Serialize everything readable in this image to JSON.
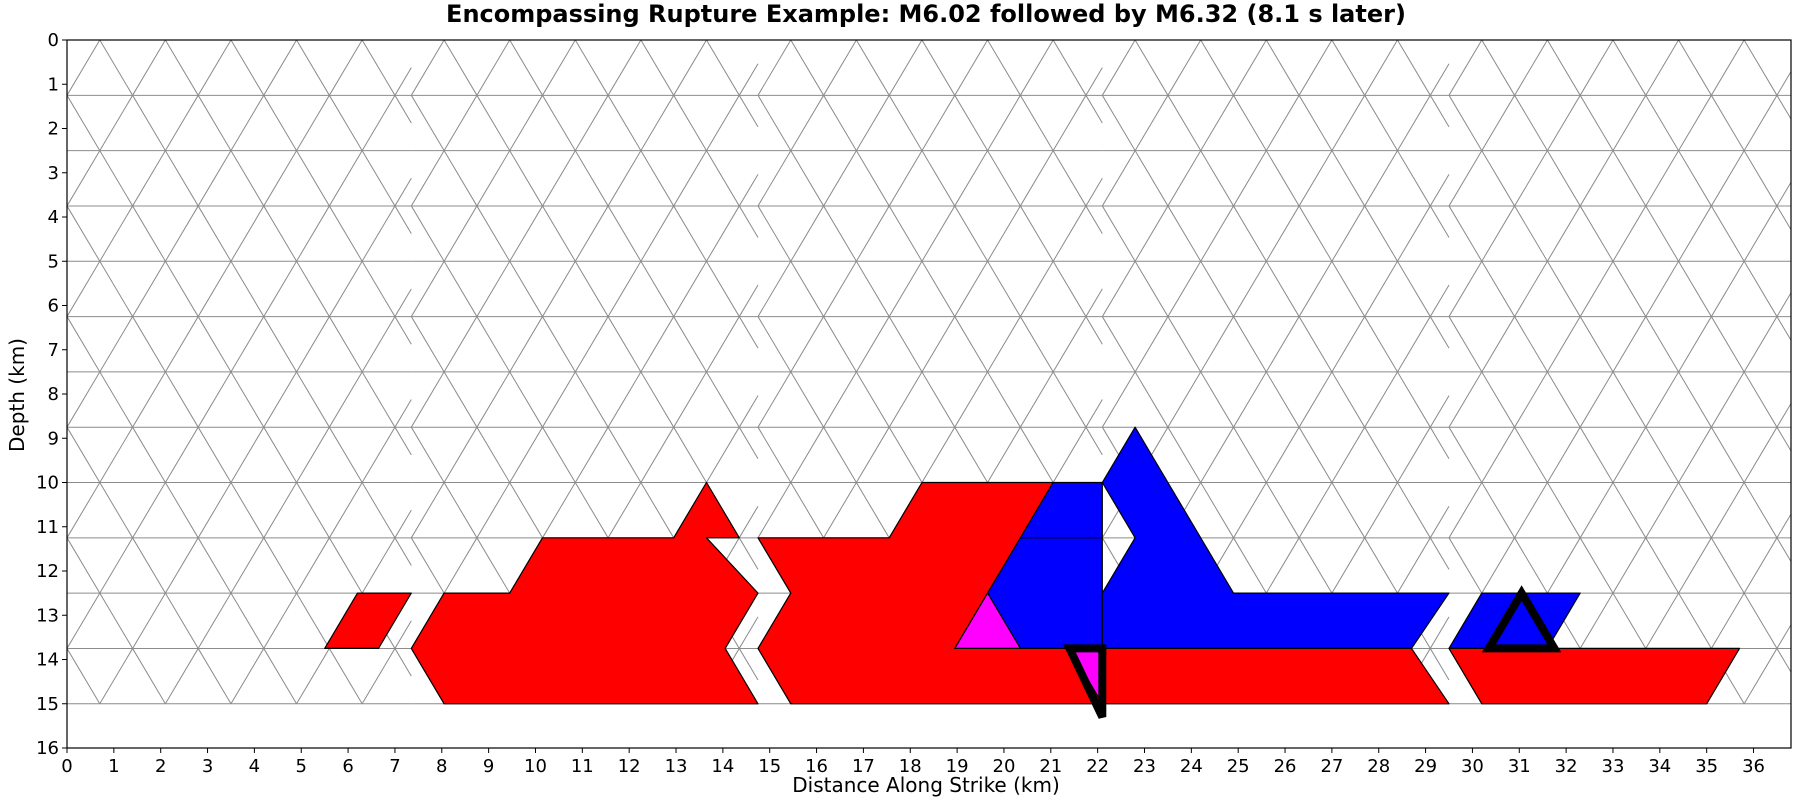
{
  "chart_data": {
    "type": "triangular-fault-mesh",
    "title": "Encompassing Rupture Example: M6.02 followed by M6.32 (8.1 s later)",
    "xlabel": "Distance Along Strike (km)",
    "ylabel": "Depth (km)",
    "xlim": [
      0,
      36.8
    ],
    "ylim": [
      16,
      0
    ],
    "x_ticks": [
      "0",
      "1",
      "2",
      "3",
      "4",
      "5",
      "6",
      "7",
      "8",
      "9",
      "10",
      "11",
      "12",
      "13",
      "14",
      "15",
      "16",
      "17",
      "18",
      "19",
      "20",
      "21",
      "22",
      "23",
      "24",
      "25",
      "26",
      "27",
      "28",
      "29",
      "30",
      "31",
      "32",
      "33",
      "34",
      "35",
      "36"
    ],
    "y_ticks": [
      "0",
      "1",
      "2",
      "3",
      "4",
      "5",
      "6",
      "7",
      "8",
      "9",
      "10",
      "11",
      "12",
      "13",
      "14",
      "15",
      "16"
    ],
    "colors": {
      "background": "#ffffff",
      "mesh_line": "#8c8c8c",
      "rupture_first": "#ff0000",
      "rupture_second": "#0000ff",
      "overlap": "#ff00ff",
      "hypocenter": "#000000"
    },
    "mesh": {
      "row_depths_km": [
        0,
        1.25,
        2.5,
        3.75,
        5.0,
        6.25,
        7.5,
        8.75,
        10.0,
        11.25,
        12.5,
        13.75,
        15.0
      ],
      "triangle_width_km": 1.4,
      "segments": [
        {
          "x_start_km": 0.0,
          "x_end_km": 7.35
        },
        {
          "x_start_km": 7.35,
          "x_end_km": 14.75
        },
        {
          "x_start_km": 14.75,
          "x_end_km": 22.1
        },
        {
          "x_start_km": 22.1,
          "x_end_km": 29.5
        },
        {
          "x_start_km": 29.5,
          "x_end_km": 36.8
        }
      ]
    },
    "series": [
      {
        "color_key": "rupture_first",
        "polygons": [
          [
            [
              5.5,
              13.75
            ],
            [
              6.2,
              12.5
            ],
            [
              7.35,
              12.5
            ],
            [
              6.65,
              13.75
            ]
          ],
          [
            [
              7.35,
              13.75
            ],
            [
              8.05,
              12.5
            ],
            [
              9.45,
              12.5
            ],
            [
              10.15,
              11.25
            ],
            [
              12.95,
              11.25
            ],
            [
              13.65,
              10.0
            ],
            [
              14.35,
              11.25
            ],
            [
              13.65,
              11.25
            ],
            [
              14.75,
              12.5
            ],
            [
              14.05,
              13.75
            ],
            [
              14.75,
              15.0
            ],
            [
              8.05,
              15.0
            ]
          ],
          [
            [
              14.75,
              11.25
            ],
            [
              17.55,
              11.25
            ],
            [
              18.25,
              10.0
            ],
            [
              21.05,
              10.0
            ],
            [
              20.35,
              11.25
            ],
            [
              19.65,
              12.5
            ],
            [
              18.95,
              13.75
            ],
            [
              21.75,
              13.75
            ],
            [
              22.1,
              15.0
            ],
            [
              15.45,
              15.0
            ],
            [
              14.75,
              13.75
            ],
            [
              15.45,
              12.5
            ]
          ],
          [
            [
              22.1,
              13.75
            ],
            [
              28.7,
              13.75
            ],
            [
              29.5,
              15.0
            ],
            [
              22.1,
              15.0
            ]
          ],
          [
            [
              29.5,
              13.75
            ],
            [
              35.7,
              13.75
            ],
            [
              35.0,
              15.0
            ],
            [
              30.2,
              15.0
            ]
          ]
        ]
      },
      {
        "color_key": "rupture_second",
        "polygons": [
          [
            [
              20.35,
              11.25
            ],
            [
              21.05,
              10.0
            ],
            [
              22.1,
              10.0
            ],
            [
              22.1,
              11.25
            ]
          ],
          [
            [
              19.65,
              12.5
            ],
            [
              20.35,
              11.25
            ],
            [
              22.1,
              11.25
            ],
            [
              22.1,
              13.75
            ],
            [
              20.35,
              13.75
            ]
          ],
          [
            [
              22.1,
              10.0
            ],
            [
              22.8,
              8.75
            ],
            [
              23.5,
              10.0
            ],
            [
              24.2,
              11.25
            ],
            [
              24.9,
              12.5
            ],
            [
              29.5,
              12.5
            ],
            [
              28.7,
              13.75
            ],
            [
              22.1,
              13.75
            ],
            [
              22.1,
              12.5
            ],
            [
              22.8,
              11.25
            ]
          ],
          [
            [
              29.5,
              13.75
            ],
            [
              30.2,
              12.5
            ],
            [
              32.3,
              12.5
            ],
            [
              31.6,
              13.75
            ]
          ]
        ]
      },
      {
        "color_key": "overlap",
        "polygons": [
          [
            [
              18.95,
              13.75
            ],
            [
              19.65,
              12.5
            ],
            [
              20.35,
              13.75
            ]
          ],
          [
            [
              21.4,
              13.75
            ],
            [
              22.1,
              13.75
            ],
            [
              22.1,
              15.0
            ]
          ]
        ]
      }
    ],
    "hypocenters": [
      {
        "rupture": "first",
        "points": [
          [
            21.4,
            13.75
          ],
          [
            22.1,
            13.75
          ],
          [
            22.1,
            15.3
          ]
        ]
      },
      {
        "rupture": "second",
        "points": [
          [
            30.35,
            13.75
          ],
          [
            31.05,
            12.5
          ],
          [
            31.75,
            13.75
          ]
        ]
      }
    ]
  }
}
